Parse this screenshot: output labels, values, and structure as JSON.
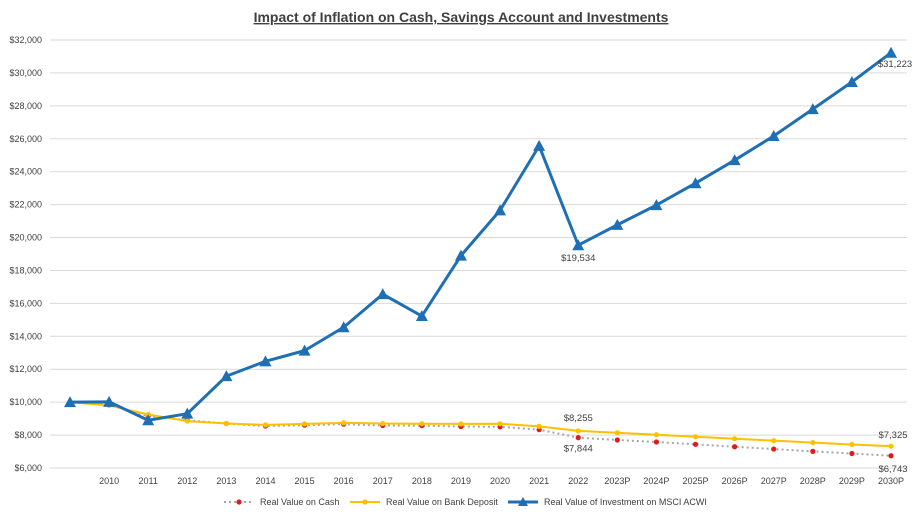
{
  "chart_data": {
    "type": "line",
    "title": "Impact of Inflation on Cash, Savings Account and Investments",
    "xlabel": "",
    "ylabel": "",
    "categories": [
      "",
      "2010",
      "2011",
      "2012",
      "2013",
      "2014",
      "2015",
      "2016",
      "2017",
      "2018",
      "2019",
      "2020",
      "2021",
      "2022",
      "2023P",
      "2024P",
      "2025P",
      "2026P",
      "2027P",
      "2028P",
      "2029P",
      "2030P"
    ],
    "ylim": [
      6000,
      32000
    ],
    "yticks": [
      "$6,000",
      "$8,000",
      "$10,000",
      "$12,000",
      "$14,000",
      "$16,000",
      "$18,000",
      "$20,000",
      "$22,000",
      "$24,000",
      "$26,000",
      "$28,000",
      "$30,000",
      "$32,000"
    ],
    "grid": true,
    "legend_position": "bottom",
    "series": [
      {
        "name": "Real Value on Cash",
        "color": "#E31A1C",
        "line_color": "#A6A6A6",
        "style": "dotted",
        "marker": "circle",
        "values": [
          10000,
          9840,
          9160,
          8900,
          8700,
          8550,
          8600,
          8660,
          8580,
          8570,
          8520,
          8500,
          8330,
          7844,
          7700,
          7580,
          7440,
          7290,
          7150,
          7010,
          6880,
          6743
        ]
      },
      {
        "name": "Real Value on Bank Deposit",
        "color": "#FFC000",
        "line_color": "#FFC000",
        "style": "solid",
        "marker": "circle",
        "values": [
          10000,
          9800,
          9250,
          8850,
          8700,
          8620,
          8680,
          8740,
          8700,
          8690,
          8680,
          8690,
          8530,
          8255,
          8140,
          8020,
          7900,
          7780,
          7660,
          7540,
          7430,
          7325
        ]
      },
      {
        "name": "Real Value of Investment on MSCI ACWI",
        "color": "#1F6FB4",
        "line_color": "#1F6FB4",
        "style": "solid",
        "marker": "triangle",
        "values": [
          10000,
          10020,
          8900,
          9300,
          11580,
          12480,
          13130,
          14550,
          16560,
          15230,
          18900,
          21650,
          25570,
          19534,
          20770,
          21970,
          23300,
          24700,
          26170,
          27800,
          29450,
          31223
        ]
      }
    ],
    "annotations": [
      {
        "text": "$31,223",
        "series": 2,
        "index": 21
      },
      {
        "text": "$19,534",
        "series": 2,
        "index": 13
      },
      {
        "text": "$8,255",
        "series": 1,
        "index": 13
      },
      {
        "text": "$7,844",
        "series": 0,
        "index": 13
      },
      {
        "text": "$7,325",
        "series": 1,
        "index": 21
      },
      {
        "text": "$6,743",
        "series": 0,
        "index": 21
      }
    ]
  }
}
